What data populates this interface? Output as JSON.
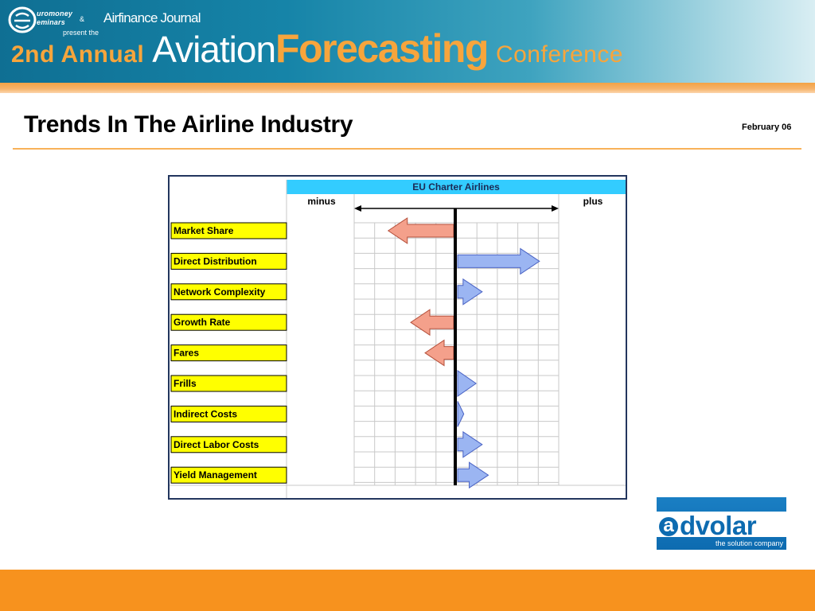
{
  "header": {
    "sponsor_line1": "uromoney",
    "sponsor_line2": "eminars",
    "ampersand": "&",
    "present_the": "present the",
    "partner": "Airfinance Journal",
    "conference": {
      "annual": "2nd Annual",
      "aviation": "Aviation",
      "forecasting": "Forecasting",
      "conference": "Conference"
    }
  },
  "slide": {
    "title": "Trends In The Airline Industry",
    "date": "February 06"
  },
  "chart_data": {
    "type": "bar",
    "title": "EU Charter Airlines",
    "left_label": "minus",
    "right_label": "plus",
    "categories": [
      "Market Share",
      "Direct Distribution",
      "Network Complexity",
      "Growth Rate",
      "Fares",
      "Frills",
      "Indirect Costs",
      "Direct Labor Costs",
      "Yield Management"
    ],
    "values": [
      -3.2,
      4.0,
      1.2,
      -2.1,
      -1.4,
      0.9,
      0.3,
      1.2,
      1.5
    ],
    "xlim": [
      -5,
      5
    ],
    "grid": true,
    "colors": {
      "minus": "#f4a08b",
      "plus": "#9bb5f2",
      "label_bg": "#ffff00",
      "header_bg": "#33ccff"
    }
  },
  "logo": {
    "first_letter": "a",
    "rest": "dvolar",
    "tagline": "the solution company"
  }
}
